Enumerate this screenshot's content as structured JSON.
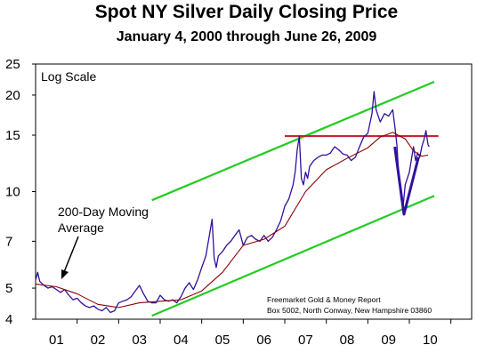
{
  "chart_data": {
    "type": "line",
    "title": "Spot NY Silver Daily Closing Price",
    "subtitle": "January 4, 2000 through June 26, 2009",
    "scale_label": "Log Scale",
    "y_scale": "log",
    "ylim": [
      4,
      25
    ],
    "xlim": [
      2000.0,
      2010.5
    ],
    "yticks": [
      4,
      5,
      7,
      10,
      15,
      20,
      25
    ],
    "xtick_labels": [
      "01",
      "02",
      "03",
      "04",
      "05",
      "06",
      "07",
      "08",
      "09",
      "10"
    ],
    "xtick_positions": [
      2001.0,
      2002.0,
      2003.0,
      2004.0,
      2005.0,
      2006.0,
      2007.0,
      2008.0,
      2009.0,
      2010.0
    ],
    "grid": false,
    "series": [
      {
        "name": "Spot NY Silver Daily Closing Price",
        "color": "#3010a0",
        "x": [
          2000.0,
          2000.05,
          2000.1,
          2000.2,
          2000.3,
          2000.4,
          2000.5,
          2000.6,
          2000.7,
          2000.8,
          2000.9,
          2001.0,
          2001.1,
          2001.2,
          2001.3,
          2001.4,
          2001.5,
          2001.6,
          2001.7,
          2001.8,
          2001.9,
          2002.0,
          2002.1,
          2002.2,
          2002.3,
          2002.4,
          2002.5,
          2002.6,
          2002.7,
          2002.8,
          2002.9,
          2003.0,
          2003.1,
          2003.2,
          2003.3,
          2003.4,
          2003.5,
          2003.6,
          2003.7,
          2003.8,
          2003.9,
          2004.0,
          2004.1,
          2004.2,
          2004.25,
          2004.3,
          2004.35,
          2004.4,
          2004.5,
          2004.6,
          2004.7,
          2004.8,
          2004.9,
          2005.0,
          2005.1,
          2005.2,
          2005.3,
          2005.4,
          2005.5,
          2005.6,
          2005.7,
          2005.8,
          2005.9,
          2006.0,
          2006.1,
          2006.2,
          2006.25,
          2006.3,
          2006.35,
          2006.4,
          2006.45,
          2006.5,
          2006.55,
          2006.6,
          2006.7,
          2006.8,
          2006.9,
          2007.0,
          2007.1,
          2007.2,
          2007.3,
          2007.4,
          2007.5,
          2007.6,
          2007.7,
          2007.8,
          2007.9,
          2008.0,
          2008.1,
          2008.15,
          2008.2,
          2008.25,
          2008.3,
          2008.4,
          2008.5,
          2008.6,
          2008.65,
          2008.7,
          2008.75,
          2008.8,
          2008.85,
          2008.9,
          2009.0,
          2009.1,
          2009.15,
          2009.2,
          2009.25,
          2009.3,
          2009.35,
          2009.4,
          2009.45,
          2009.48
        ],
        "values": [
          5.3,
          5.6,
          5.25,
          5.1,
          5.0,
          5.05,
          4.95,
          4.85,
          4.95,
          4.75,
          4.6,
          4.65,
          4.5,
          4.4,
          4.35,
          4.4,
          4.3,
          4.25,
          4.35,
          4.2,
          4.25,
          4.5,
          4.55,
          4.6,
          4.7,
          4.9,
          5.1,
          4.8,
          4.55,
          4.5,
          4.5,
          4.75,
          4.6,
          4.55,
          4.6,
          4.5,
          4.7,
          5.0,
          5.2,
          4.95,
          5.3,
          5.8,
          6.3,
          7.5,
          8.2,
          6.2,
          5.8,
          6.3,
          6.5,
          6.8,
          7.0,
          7.3,
          7.6,
          6.8,
          7.2,
          7.3,
          7.1,
          7.0,
          7.3,
          7.0,
          7.2,
          7.6,
          8.1,
          9.0,
          9.5,
          10.5,
          11.5,
          13.5,
          14.9,
          11.0,
          10.5,
          11.5,
          11.0,
          12.0,
          12.5,
          12.8,
          13.0,
          13.0,
          13.2,
          13.8,
          13.5,
          13.1,
          13.0,
          12.5,
          12.8,
          13.8,
          14.8,
          15.2,
          17.5,
          20.5,
          18.0,
          17.2,
          16.5,
          17.5,
          17.2,
          18.0,
          16.0,
          14.0,
          11.0,
          9.5,
          9.0,
          10.5,
          11.5,
          13.8,
          12.5,
          13.2,
          12.8,
          13.8,
          14.5,
          15.5,
          14.0,
          13.8
        ]
      },
      {
        "name": "200-Day Moving Average",
        "color": "#8b0000",
        "x": [
          2000.0,
          2000.5,
          2001.0,
          2001.5,
          2002.0,
          2002.5,
          2003.0,
          2003.5,
          2004.0,
          2004.5,
          2005.0,
          2005.5,
          2006.0,
          2006.5,
          2007.0,
          2007.5,
          2008.0,
          2008.3,
          2008.6,
          2008.9,
          2009.1,
          2009.3,
          2009.45
        ],
        "values": [
          5.15,
          5.05,
          4.8,
          4.45,
          4.35,
          4.5,
          4.55,
          4.6,
          4.9,
          5.6,
          6.8,
          7.1,
          7.8,
          10.0,
          11.7,
          12.7,
          13.7,
          14.8,
          15.3,
          14.6,
          13.4,
          12.9,
          13.0
        ]
      }
    ],
    "trendlines": [
      {
        "color": "#22cc22",
        "x": [
          2002.8,
          2009.6
        ],
        "values": [
          9.4,
          22.0
        ]
      },
      {
        "color": "#22cc22",
        "x": [
          2002.8,
          2009.6
        ],
        "values": [
          4.1,
          9.7
        ]
      },
      {
        "color": "#cc2233",
        "x": [
          2006.0,
          2009.7
        ],
        "values": [
          14.9,
          14.9
        ]
      },
      {
        "color": "#3010a0",
        "x": [
          2008.65,
          2008.87,
          2009.22
        ],
        "values": [
          13.8,
          8.5,
          12.8
        ]
      }
    ],
    "annotations": [
      {
        "text": "200-Day Moving",
        "line": 1
      },
      {
        "text": "Average",
        "line": 2
      }
    ],
    "credits": [
      "Freemarket Gold & Money Report",
      "Box 5002, North Conway, New Hampshire 03860"
    ]
  }
}
